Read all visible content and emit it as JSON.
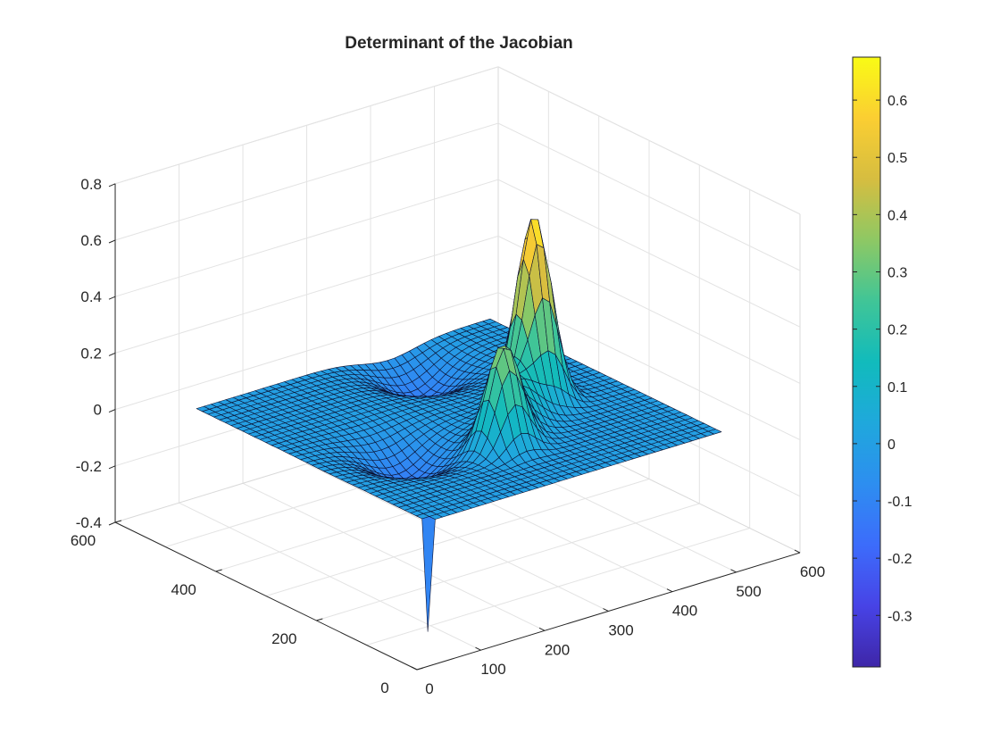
{
  "chart_data": {
    "type": "surface",
    "title": "Determinant of the Jacobian",
    "xlabel": "",
    "ylabel": "",
    "zlabel": "",
    "colormap": "parula",
    "grid": true,
    "box": true,
    "xlim": [
      0,
      600
    ],
    "ylim": [
      0,
      600
    ],
    "zlim": [
      -0.4,
      0.8
    ],
    "x_ticks": [
      "0",
      "100",
      "200",
      "300",
      "400",
      "500",
      "600"
    ],
    "y_ticks": [
      "0",
      "200",
      "400",
      "600"
    ],
    "z_ticks": [
      "-0.4",
      "-0.2",
      "0",
      "0.2",
      "0.4",
      "0.6",
      "0.8"
    ],
    "colorbar": {
      "clim": [
        -0.39,
        0.675
      ],
      "ticks": [
        "-0.3",
        "-0.2",
        "-0.1",
        "0",
        "0.1",
        "0.2",
        "0.3",
        "0.4",
        "0.5",
        "0.6"
      ]
    },
    "surface_grid": {
      "x_range": [
        80,
        540
      ],
      "y_range": [
        80,
        540
      ],
      "n": 40,
      "baseline": 0
    },
    "features": [
      {
        "kind": "peak",
        "x": 420,
        "y": 300,
        "z": 0.66
      },
      {
        "kind": "peak",
        "x": 300,
        "y": 210,
        "z": 0.36
      },
      {
        "kind": "trough",
        "x": 205,
        "y": 280,
        "z": -0.12
      },
      {
        "kind": "trough",
        "x": 380,
        "y": 475,
        "z": -0.12
      },
      {
        "kind": "spike",
        "x": 80,
        "y": 80,
        "z": -0.39
      }
    ]
  }
}
